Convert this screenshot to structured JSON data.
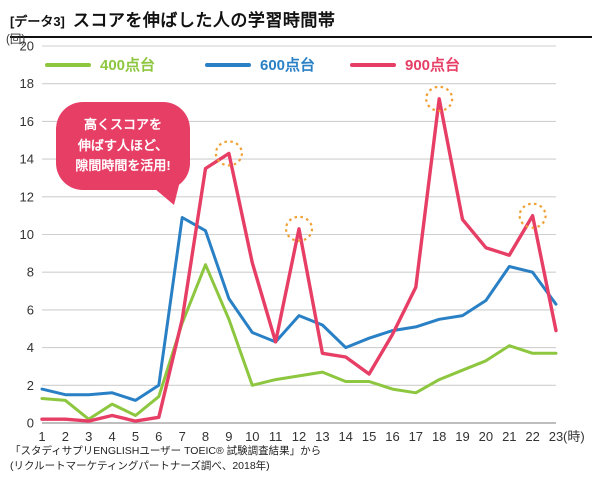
{
  "header": {
    "tag": "[データ3]",
    "title": "スコアを伸ばした人の学習時間帯"
  },
  "y_axis_unit": "(回)",
  "x_axis_unit": "(時)",
  "bubble": {
    "color": "#e73e66",
    "lines": [
      "高くスコアを",
      "伸ばす人ほど、",
      "隙間時間を活用!"
    ]
  },
  "footer": {
    "line1": "「スタディサプリENGLISHユーザー TOEIC® 試験調査結果」から",
    "line2": "(リクルートマーケティングパートナーズ調べ、2018年)"
  },
  "chart_data": {
    "type": "line",
    "title": "スコアを伸ばした人の学習時間帯",
    "xlabel": "(時)",
    "ylabel": "(回)",
    "x": [
      1,
      2,
      3,
      4,
      5,
      6,
      7,
      8,
      9,
      10,
      11,
      12,
      13,
      14,
      15,
      16,
      17,
      18,
      19,
      20,
      21,
      22,
      23
    ],
    "ylim": [
      0,
      20
    ],
    "ytick_step": 2,
    "grid": true,
    "legend_position": "top",
    "series": [
      {
        "name": "400点台",
        "color": "#8dc63f",
        "values": [
          1.3,
          1.2,
          0.2,
          1.0,
          0.4,
          1.4,
          5.3,
          8.4,
          5.5,
          2.0,
          2.3,
          2.5,
          2.7,
          2.2,
          2.2,
          1.8,
          1.6,
          2.3,
          2.8,
          3.3,
          4.1,
          3.7,
          3.7
        ]
      },
      {
        "name": "600点台",
        "color": "#2a80c5",
        "values": [
          1.8,
          1.5,
          1.5,
          1.6,
          1.2,
          2.0,
          10.9,
          10.2,
          6.6,
          4.8,
          4.3,
          5.7,
          5.2,
          4.0,
          4.5,
          4.9,
          5.1,
          5.5,
          5.7,
          6.5,
          8.3,
          8.0,
          6.3
        ]
      },
      {
        "name": "900点台",
        "color": "#e73e66",
        "values": [
          0.2,
          0.2,
          0.1,
          0.4,
          0.1,
          0.3,
          5.5,
          13.5,
          14.3,
          8.5,
          4.3,
          10.3,
          3.7,
          3.5,
          2.6,
          4.7,
          7.2,
          17.2,
          10.8,
          9.3,
          8.9,
          11.0,
          4.9
        ]
      }
    ],
    "highlights": [
      {
        "x": 9,
        "y": 14.3
      },
      {
        "x": 12,
        "y": 10.3
      },
      {
        "x": 18,
        "y": 17.2
      },
      {
        "x": 22,
        "y": 11.0
      }
    ],
    "highlight_color": "#f0a032"
  }
}
